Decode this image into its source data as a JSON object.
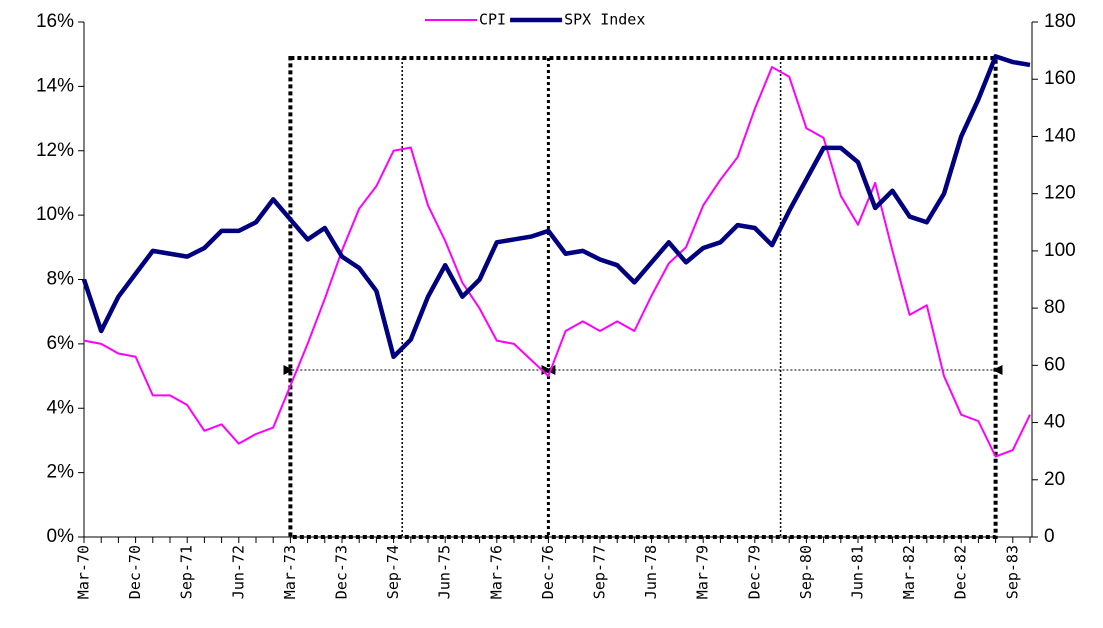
{
  "chart_data": {
    "type": "line",
    "legend": "top",
    "categories": [
      "Mar-70",
      null,
      null,
      "Dec-70",
      null,
      null,
      "Sep-71",
      null,
      null,
      "Jun-72",
      null,
      null,
      "Mar-73",
      null,
      null,
      "Dec-73",
      null,
      null,
      "Sep-74",
      null,
      null,
      "Jun-75",
      null,
      null,
      "Mar-76",
      null,
      null,
      "Dec-76",
      null,
      null,
      "Sep-77",
      null,
      null,
      "Jun-78",
      null,
      null,
      "Mar-79",
      null,
      null,
      "Dec-79",
      null,
      null,
      "Sep-80",
      null,
      null,
      "Jun-81",
      null,
      null,
      "Mar-82",
      null,
      null,
      "Dec-82",
      null,
      null,
      "Sep-83",
      null
    ],
    "series": [
      {
        "name": "CPI",
        "color": "#ff00ff",
        "axis": "y",
        "values": [
          6.1,
          6.0,
          5.7,
          5.6,
          4.4,
          4.4,
          4.1,
          3.3,
          3.5,
          2.9,
          3.2,
          3.4,
          4.7,
          6.0,
          7.4,
          8.9,
          10.2,
          10.9,
          12.0,
          12.1,
          10.3,
          9.2,
          7.9,
          7.1,
          6.1,
          6.0,
          5.5,
          5.0,
          6.4,
          6.7,
          6.4,
          6.7,
          6.4,
          7.5,
          8.5,
          9.0,
          10.3,
          11.1,
          11.8,
          13.3,
          14.6,
          14.3,
          12.7,
          12.4,
          10.6,
          9.7,
          11.0,
          8.9,
          6.9,
          7.2,
          5.0,
          3.8,
          3.6,
          2.5,
          2.7,
          3.8
        ]
      },
      {
        "name": "SPX Index",
        "color": "#000080",
        "axis": "y2",
        "values": [
          90,
          72,
          84,
          92,
          100,
          99,
          98,
          101,
          107,
          107,
          110,
          118,
          111,
          104,
          108,
          98,
          94,
          86,
          63,
          69,
          84,
          95,
          84,
          90,
          103,
          104,
          105,
          107,
          99,
          100,
          97,
          95,
          89,
          96,
          103,
          96,
          101,
          103,
          109,
          108,
          102,
          114,
          125,
          136,
          136,
          131,
          115,
          121,
          112,
          110,
          120,
          140,
          153,
          168,
          166,
          165
        ]
      }
    ],
    "ylim": [
      0,
      16
    ],
    "yticks": [
      {
        "value": 0,
        "label": "0%"
      },
      {
        "value": 2,
        "label": "2%"
      },
      {
        "value": 4,
        "label": "4%"
      },
      {
        "value": 6,
        "label": "6%"
      },
      {
        "value": 8,
        "label": "8%"
      },
      {
        "value": 10,
        "label": "10%"
      },
      {
        "value": 12,
        "label": "12%"
      },
      {
        "value": 14,
        "label": "14%"
      },
      {
        "value": 16,
        "label": "16%"
      }
    ],
    "y2lim": [
      0,
      180
    ],
    "y2ticks": [
      0,
      20,
      40,
      60,
      80,
      100,
      120,
      140,
      160,
      180
    ],
    "grid": false
  }
}
